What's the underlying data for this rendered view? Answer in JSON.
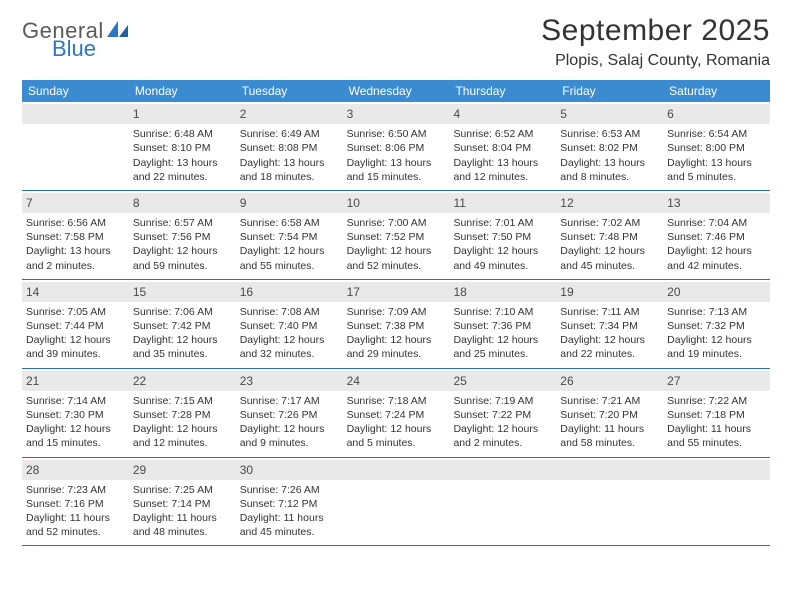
{
  "logo": {
    "general": "General",
    "blue": "Blue"
  },
  "title": "September 2025",
  "location": "Plopis, Salaj County, Romania",
  "header_bg": "#3b8bd0",
  "weekdays": [
    "Sunday",
    "Monday",
    "Tuesday",
    "Wednesday",
    "Thursday",
    "Friday",
    "Saturday"
  ],
  "weeks": [
    [
      {
        "n": "",
        "sunrise": "",
        "sunset": "",
        "daylight1": "",
        "daylight2": ""
      },
      {
        "n": "1",
        "sunrise": "Sunrise: 6:48 AM",
        "sunset": "Sunset: 8:10 PM",
        "daylight1": "Daylight: 13 hours",
        "daylight2": "and 22 minutes."
      },
      {
        "n": "2",
        "sunrise": "Sunrise: 6:49 AM",
        "sunset": "Sunset: 8:08 PM",
        "daylight1": "Daylight: 13 hours",
        "daylight2": "and 18 minutes."
      },
      {
        "n": "3",
        "sunrise": "Sunrise: 6:50 AM",
        "sunset": "Sunset: 8:06 PM",
        "daylight1": "Daylight: 13 hours",
        "daylight2": "and 15 minutes."
      },
      {
        "n": "4",
        "sunrise": "Sunrise: 6:52 AM",
        "sunset": "Sunset: 8:04 PM",
        "daylight1": "Daylight: 13 hours",
        "daylight2": "and 12 minutes."
      },
      {
        "n": "5",
        "sunrise": "Sunrise: 6:53 AM",
        "sunset": "Sunset: 8:02 PM",
        "daylight1": "Daylight: 13 hours",
        "daylight2": "and 8 minutes."
      },
      {
        "n": "6",
        "sunrise": "Sunrise: 6:54 AM",
        "sunset": "Sunset: 8:00 PM",
        "daylight1": "Daylight: 13 hours",
        "daylight2": "and 5 minutes."
      }
    ],
    [
      {
        "n": "7",
        "sunrise": "Sunrise: 6:56 AM",
        "sunset": "Sunset: 7:58 PM",
        "daylight1": "Daylight: 13 hours",
        "daylight2": "and 2 minutes."
      },
      {
        "n": "8",
        "sunrise": "Sunrise: 6:57 AM",
        "sunset": "Sunset: 7:56 PM",
        "daylight1": "Daylight: 12 hours",
        "daylight2": "and 59 minutes."
      },
      {
        "n": "9",
        "sunrise": "Sunrise: 6:58 AM",
        "sunset": "Sunset: 7:54 PM",
        "daylight1": "Daylight: 12 hours",
        "daylight2": "and 55 minutes."
      },
      {
        "n": "10",
        "sunrise": "Sunrise: 7:00 AM",
        "sunset": "Sunset: 7:52 PM",
        "daylight1": "Daylight: 12 hours",
        "daylight2": "and 52 minutes."
      },
      {
        "n": "11",
        "sunrise": "Sunrise: 7:01 AM",
        "sunset": "Sunset: 7:50 PM",
        "daylight1": "Daylight: 12 hours",
        "daylight2": "and 49 minutes."
      },
      {
        "n": "12",
        "sunrise": "Sunrise: 7:02 AM",
        "sunset": "Sunset: 7:48 PM",
        "daylight1": "Daylight: 12 hours",
        "daylight2": "and 45 minutes."
      },
      {
        "n": "13",
        "sunrise": "Sunrise: 7:04 AM",
        "sunset": "Sunset: 7:46 PM",
        "daylight1": "Daylight: 12 hours",
        "daylight2": "and 42 minutes."
      }
    ],
    [
      {
        "n": "14",
        "sunrise": "Sunrise: 7:05 AM",
        "sunset": "Sunset: 7:44 PM",
        "daylight1": "Daylight: 12 hours",
        "daylight2": "and 39 minutes."
      },
      {
        "n": "15",
        "sunrise": "Sunrise: 7:06 AM",
        "sunset": "Sunset: 7:42 PM",
        "daylight1": "Daylight: 12 hours",
        "daylight2": "and 35 minutes."
      },
      {
        "n": "16",
        "sunrise": "Sunrise: 7:08 AM",
        "sunset": "Sunset: 7:40 PM",
        "daylight1": "Daylight: 12 hours",
        "daylight2": "and 32 minutes."
      },
      {
        "n": "17",
        "sunrise": "Sunrise: 7:09 AM",
        "sunset": "Sunset: 7:38 PM",
        "daylight1": "Daylight: 12 hours",
        "daylight2": "and 29 minutes."
      },
      {
        "n": "18",
        "sunrise": "Sunrise: 7:10 AM",
        "sunset": "Sunset: 7:36 PM",
        "daylight1": "Daylight: 12 hours",
        "daylight2": "and 25 minutes."
      },
      {
        "n": "19",
        "sunrise": "Sunrise: 7:11 AM",
        "sunset": "Sunset: 7:34 PM",
        "daylight1": "Daylight: 12 hours",
        "daylight2": "and 22 minutes."
      },
      {
        "n": "20",
        "sunrise": "Sunrise: 7:13 AM",
        "sunset": "Sunset: 7:32 PM",
        "daylight1": "Daylight: 12 hours",
        "daylight2": "and 19 minutes."
      }
    ],
    [
      {
        "n": "21",
        "sunrise": "Sunrise: 7:14 AM",
        "sunset": "Sunset: 7:30 PM",
        "daylight1": "Daylight: 12 hours",
        "daylight2": "and 15 minutes."
      },
      {
        "n": "22",
        "sunrise": "Sunrise: 7:15 AM",
        "sunset": "Sunset: 7:28 PM",
        "daylight1": "Daylight: 12 hours",
        "daylight2": "and 12 minutes."
      },
      {
        "n": "23",
        "sunrise": "Sunrise: 7:17 AM",
        "sunset": "Sunset: 7:26 PM",
        "daylight1": "Daylight: 12 hours",
        "daylight2": "and 9 minutes."
      },
      {
        "n": "24",
        "sunrise": "Sunrise: 7:18 AM",
        "sunset": "Sunset: 7:24 PM",
        "daylight1": "Daylight: 12 hours",
        "daylight2": "and 5 minutes."
      },
      {
        "n": "25",
        "sunrise": "Sunrise: 7:19 AM",
        "sunset": "Sunset: 7:22 PM",
        "daylight1": "Daylight: 12 hours",
        "daylight2": "and 2 minutes."
      },
      {
        "n": "26",
        "sunrise": "Sunrise: 7:21 AM",
        "sunset": "Sunset: 7:20 PM",
        "daylight1": "Daylight: 11 hours",
        "daylight2": "and 58 minutes."
      },
      {
        "n": "27",
        "sunrise": "Sunrise: 7:22 AM",
        "sunset": "Sunset: 7:18 PM",
        "daylight1": "Daylight: 11 hours",
        "daylight2": "and 55 minutes."
      }
    ],
    [
      {
        "n": "28",
        "sunrise": "Sunrise: 7:23 AM",
        "sunset": "Sunset: 7:16 PM",
        "daylight1": "Daylight: 11 hours",
        "daylight2": "and 52 minutes."
      },
      {
        "n": "29",
        "sunrise": "Sunrise: 7:25 AM",
        "sunset": "Sunset: 7:14 PM",
        "daylight1": "Daylight: 11 hours",
        "daylight2": "and 48 minutes."
      },
      {
        "n": "30",
        "sunrise": "Sunrise: 7:26 AM",
        "sunset": "Sunset: 7:12 PM",
        "daylight1": "Daylight: 11 hours",
        "daylight2": "and 45 minutes."
      },
      {
        "n": "",
        "sunrise": "",
        "sunset": "",
        "daylight1": "",
        "daylight2": ""
      },
      {
        "n": "",
        "sunrise": "",
        "sunset": "",
        "daylight1": "",
        "daylight2": ""
      },
      {
        "n": "",
        "sunrise": "",
        "sunset": "",
        "daylight1": "",
        "daylight2": ""
      },
      {
        "n": "",
        "sunrise": "",
        "sunset": "",
        "daylight1": "",
        "daylight2": ""
      }
    ]
  ]
}
